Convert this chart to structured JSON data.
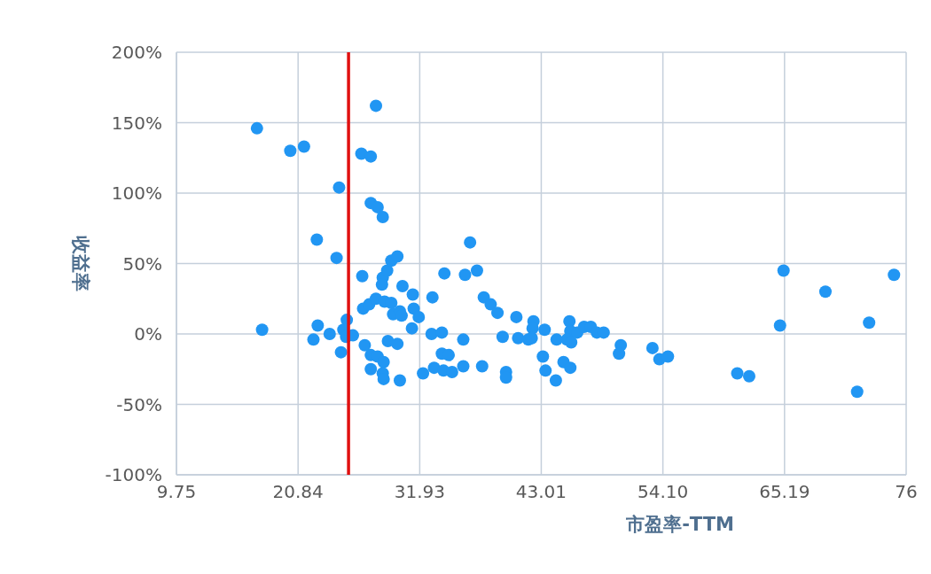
{
  "chart_data": {
    "type": "scatter",
    "xlabel": "市盈率-TTM",
    "ylabel": "收益率",
    "grid": true,
    "marker": "circle",
    "xlim": [
      9.75,
      76.28
    ],
    "ylim": [
      -100,
      200
    ],
    "xticks": [
      9.75,
      20.84,
      31.93,
      43.01,
      {
        "value": 54.1,
        "label": "54.10"
      },
      65.19,
      {
        "value": 76.28,
        "label": "76"
      }
    ],
    "yticks": [
      {
        "value": -100,
        "label": "-100%"
      },
      {
        "value": -50,
        "label": "-50%"
      },
      {
        "value": 0,
        "label": "0%"
      },
      {
        "value": 50,
        "label": "50%"
      },
      {
        "value": 100,
        "label": "100%"
      },
      {
        "value": 150,
        "label": "150%"
      },
      {
        "value": 200,
        "label": "200%"
      }
    ],
    "ref_lines": [
      {
        "axis": "x",
        "value": 25.44,
        "color": "#e01010"
      }
    ],
    "series": [
      {
        "color": "#2196f3",
        "x": [
          17.09,
          20.13,
          21.38,
          27.94,
          26.61,
          27.47,
          24.58,
          27.47,
          28.09,
          28.56,
          22.55,
          24.35,
          26.69,
          28.56,
          28.49,
          28.96,
          29.34,
          29.89,
          30.36,
          31.3,
          26.77,
          27.32,
          27.94,
          28.72,
          29.34,
          29.5,
          30.12,
          30.28,
          31.38,
          31.84,
          31.22,
          33.09,
          34.18,
          36.52,
          36.06,
          37.15,
          37.77,
          38.4,
          39.02,
          33.01,
          33.95,
          35.9,
          39.49,
          40.74,
          40.9,
          41.83,
          42.3,
          42.22,
          42.14,
          43.32,
          44.41,
          45.58,
          45.66,
          45.35,
          46.29,
          46.91,
          47.53,
          48.08,
          48.7,
          45.74,
          43.16,
          43.4,
          44.34,
          45.04,
          45.66,
          50.26,
          50.1,
          53.15,
          53.78,
          54.56,
          60.88,
          61.97,
          64.78,
          65.1,
          68.92,
          72.9,
          75.17,
          71.81,
          17.56,
          22.63,
          22.24,
          23.72,
          25.28,
          24.97,
          25.22,
          24.75,
          25.84,
          26.92,
          27.47,
          28.09,
          27.47,
          28.64,
          28.56,
          28.64,
          29.03,
          29.89,
          30.12,
          32.23,
          33.24,
          34.1,
          33.95,
          34.57,
          34.88,
          35.9,
          37.62,
          39.8,
          39.8
        ],
        "values": [
          146,
          130,
          133,
          162,
          128,
          126,
          104,
          93,
          90,
          83,
          67,
          54,
          41,
          40,
          35,
          45,
          52,
          55,
          34,
          28,
          18,
          21,
          25,
          23,
          22,
          14,
          16,
          13,
          18,
          12,
          4,
          26,
          43,
          65,
          42,
          45,
          26,
          21,
          15,
          0,
          1,
          -4,
          -2,
          12,
          -3,
          -4,
          9,
          4,
          -3,
          3,
          -4,
          9,
          2,
          -4,
          1,
          5,
          5,
          1,
          1,
          -6,
          -16,
          -26,
          -33,
          -20,
          -24,
          -8,
          -14,
          -10,
          -18,
          -16,
          -28,
          -30,
          6,
          45,
          30,
          8,
          42,
          -41,
          3,
          6,
          -4,
          0,
          10,
          3,
          -2,
          -13,
          -1,
          -8,
          -15,
          -16,
          -25,
          -20,
          -28,
          -32,
          -5,
          -7,
          -33,
          -28,
          -24,
          -26,
          -14,
          -15,
          -27,
          -23,
          -23,
          -27,
          -31
        ]
      }
    ]
  }
}
